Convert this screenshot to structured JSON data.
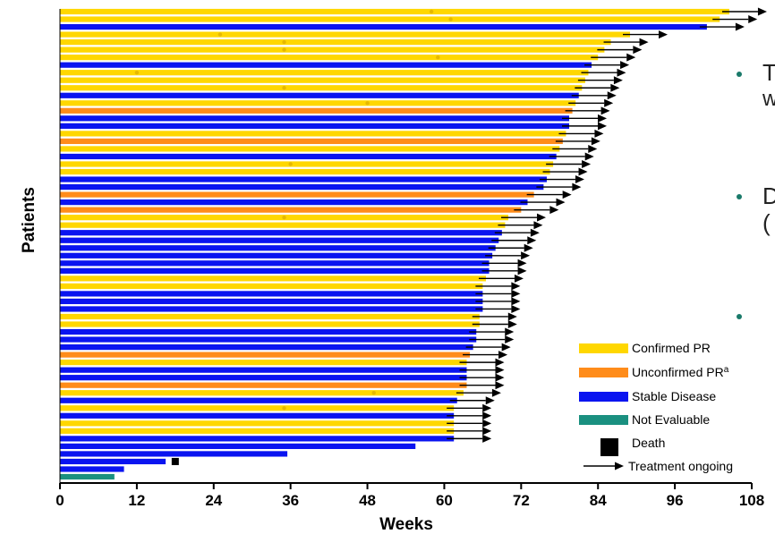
{
  "chart_data": {
    "type": "bar",
    "orientation": "horizontal",
    "xlabel": "Weeks",
    "ylabel": "Patients",
    "xlim": [
      0,
      108
    ],
    "xticks": [
      0,
      12,
      24,
      36,
      48,
      60,
      72,
      84,
      96,
      108
    ],
    "colors": {
      "confirmed_pr": "#FFD700",
      "unconfirmed_pr": "#FF8C1A",
      "stable_disease": "#0A14F0",
      "not_evaluable": "#1A9080",
      "death": "#000000",
      "response_marker": "#E6B800"
    },
    "legend": [
      {
        "key": "confirmed_pr",
        "label": "Confirmed PR",
        "superscript": ""
      },
      {
        "key": "unconfirmed_pr",
        "label": "Unconfirmed PR",
        "superscript": "a"
      },
      {
        "key": "stable_disease",
        "label": "Stable Disease",
        "superscript": ""
      },
      {
        "key": "not_evaluable",
        "label": "Not Evaluable",
        "superscript": ""
      },
      {
        "key": "death",
        "label": "Death",
        "superscript": ""
      },
      {
        "key": "ongoing",
        "label": "Treatment ongoing",
        "superscript": ""
      }
    ],
    "patients": [
      {
        "weeks": 104.5,
        "response": "confirmed_pr",
        "ongoing": true,
        "marker": 58
      },
      {
        "weeks": 103,
        "response": "confirmed_pr",
        "ongoing": true,
        "marker": 61
      },
      {
        "weeks": 101,
        "response": "stable_disease",
        "ongoing": true
      },
      {
        "weeks": 89,
        "response": "confirmed_pr",
        "ongoing": true,
        "marker": 25
      },
      {
        "weeks": 86,
        "response": "confirmed_pr",
        "ongoing": true,
        "marker": 35
      },
      {
        "weeks": 85,
        "response": "confirmed_pr",
        "ongoing": true,
        "marker": 35
      },
      {
        "weeks": 84,
        "response": "confirmed_pr",
        "ongoing": true,
        "marker": 59
      },
      {
        "weeks": 83,
        "response": "stable_disease",
        "ongoing": true
      },
      {
        "weeks": 82.5,
        "response": "confirmed_pr",
        "ongoing": true,
        "marker": 12
      },
      {
        "weeks": 82,
        "response": "confirmed_pr",
        "ongoing": true
      },
      {
        "weeks": 81.5,
        "response": "confirmed_pr",
        "ongoing": true,
        "marker": 35
      },
      {
        "weeks": 81,
        "response": "stable_disease",
        "ongoing": true
      },
      {
        "weeks": 80.5,
        "response": "confirmed_pr",
        "ongoing": true,
        "marker": 48
      },
      {
        "weeks": 80,
        "response": "unconfirmed_pr",
        "ongoing": true
      },
      {
        "weeks": 79.5,
        "response": "stable_disease",
        "ongoing": true
      },
      {
        "weeks": 79.5,
        "response": "stable_disease",
        "ongoing": true
      },
      {
        "weeks": 79,
        "response": "confirmed_pr",
        "ongoing": true
      },
      {
        "weeks": 78.5,
        "response": "unconfirmed_pr",
        "ongoing": true
      },
      {
        "weeks": 78,
        "response": "confirmed_pr",
        "ongoing": true
      },
      {
        "weeks": 77.5,
        "response": "stable_disease",
        "ongoing": true
      },
      {
        "weeks": 77,
        "response": "confirmed_pr",
        "ongoing": true,
        "marker": 36
      },
      {
        "weeks": 76.5,
        "response": "confirmed_pr",
        "ongoing": true
      },
      {
        "weeks": 76,
        "response": "stable_disease",
        "ongoing": true
      },
      {
        "weeks": 75.5,
        "response": "stable_disease",
        "ongoing": true
      },
      {
        "weeks": 74,
        "response": "unconfirmed_pr",
        "ongoing": true
      },
      {
        "weeks": 73,
        "response": "stable_disease",
        "ongoing": true
      },
      {
        "weeks": 72,
        "response": "unconfirmed_pr",
        "ongoing": true
      },
      {
        "weeks": 70,
        "response": "confirmed_pr",
        "ongoing": true,
        "marker": 35
      },
      {
        "weeks": 69.5,
        "response": "confirmed_pr",
        "ongoing": true
      },
      {
        "weeks": 69,
        "response": "stable_disease",
        "ongoing": true
      },
      {
        "weeks": 68.5,
        "response": "stable_disease",
        "ongoing": true
      },
      {
        "weeks": 68,
        "response": "stable_disease",
        "ongoing": true
      },
      {
        "weeks": 67.5,
        "response": "stable_disease",
        "ongoing": true
      },
      {
        "weeks": 67,
        "response": "stable_disease",
        "ongoing": true
      },
      {
        "weeks": 67,
        "response": "stable_disease",
        "ongoing": true
      },
      {
        "weeks": 66.5,
        "response": "confirmed_pr",
        "ongoing": true
      },
      {
        "weeks": 66,
        "response": "confirmed_pr",
        "ongoing": true
      },
      {
        "weeks": 66,
        "response": "stable_disease",
        "ongoing": true
      },
      {
        "weeks": 66,
        "response": "stable_disease",
        "ongoing": true
      },
      {
        "weeks": 66,
        "response": "stable_disease",
        "ongoing": true
      },
      {
        "weeks": 65.5,
        "response": "confirmed_pr",
        "ongoing": true
      },
      {
        "weeks": 65.5,
        "response": "confirmed_pr",
        "ongoing": true
      },
      {
        "weeks": 65,
        "response": "stable_disease",
        "ongoing": true
      },
      {
        "weeks": 65,
        "response": "stable_disease",
        "ongoing": true
      },
      {
        "weeks": 64.5,
        "response": "stable_disease",
        "ongoing": true
      },
      {
        "weeks": 64,
        "response": "unconfirmed_pr",
        "ongoing": true
      },
      {
        "weeks": 63.5,
        "response": "confirmed_pr",
        "ongoing": true
      },
      {
        "weeks": 63.5,
        "response": "stable_disease",
        "ongoing": true
      },
      {
        "weeks": 63.5,
        "response": "stable_disease",
        "ongoing": true
      },
      {
        "weeks": 63.5,
        "response": "unconfirmed_pr",
        "ongoing": true
      },
      {
        "weeks": 63,
        "response": "confirmed_pr",
        "ongoing": true,
        "marker": 49
      },
      {
        "weeks": 62,
        "response": "stable_disease",
        "ongoing": true
      },
      {
        "weeks": 61.5,
        "response": "confirmed_pr",
        "ongoing": true,
        "marker": 35
      },
      {
        "weeks": 61.5,
        "response": "stable_disease",
        "ongoing": true
      },
      {
        "weeks": 61.5,
        "response": "confirmed_pr",
        "ongoing": true
      },
      {
        "weeks": 61.5,
        "response": "confirmed_pr",
        "ongoing": true
      },
      {
        "weeks": 61.5,
        "response": "stable_disease",
        "ongoing": true
      },
      {
        "weeks": 55.5,
        "response": "stable_disease",
        "ongoing": false
      },
      {
        "weeks": 35.5,
        "response": "stable_disease",
        "ongoing": false
      },
      {
        "weeks": 16.5,
        "response": "stable_disease",
        "ongoing": false,
        "death": 18
      },
      {
        "weeks": 10,
        "response": "stable_disease",
        "ongoing": false
      },
      {
        "weeks": 8.5,
        "response": "not_evaluable",
        "ongoing": false
      }
    ]
  },
  "side_text": {
    "line1": "T",
    "line2": "w",
    "line3": "D",
    "line4": "("
  }
}
